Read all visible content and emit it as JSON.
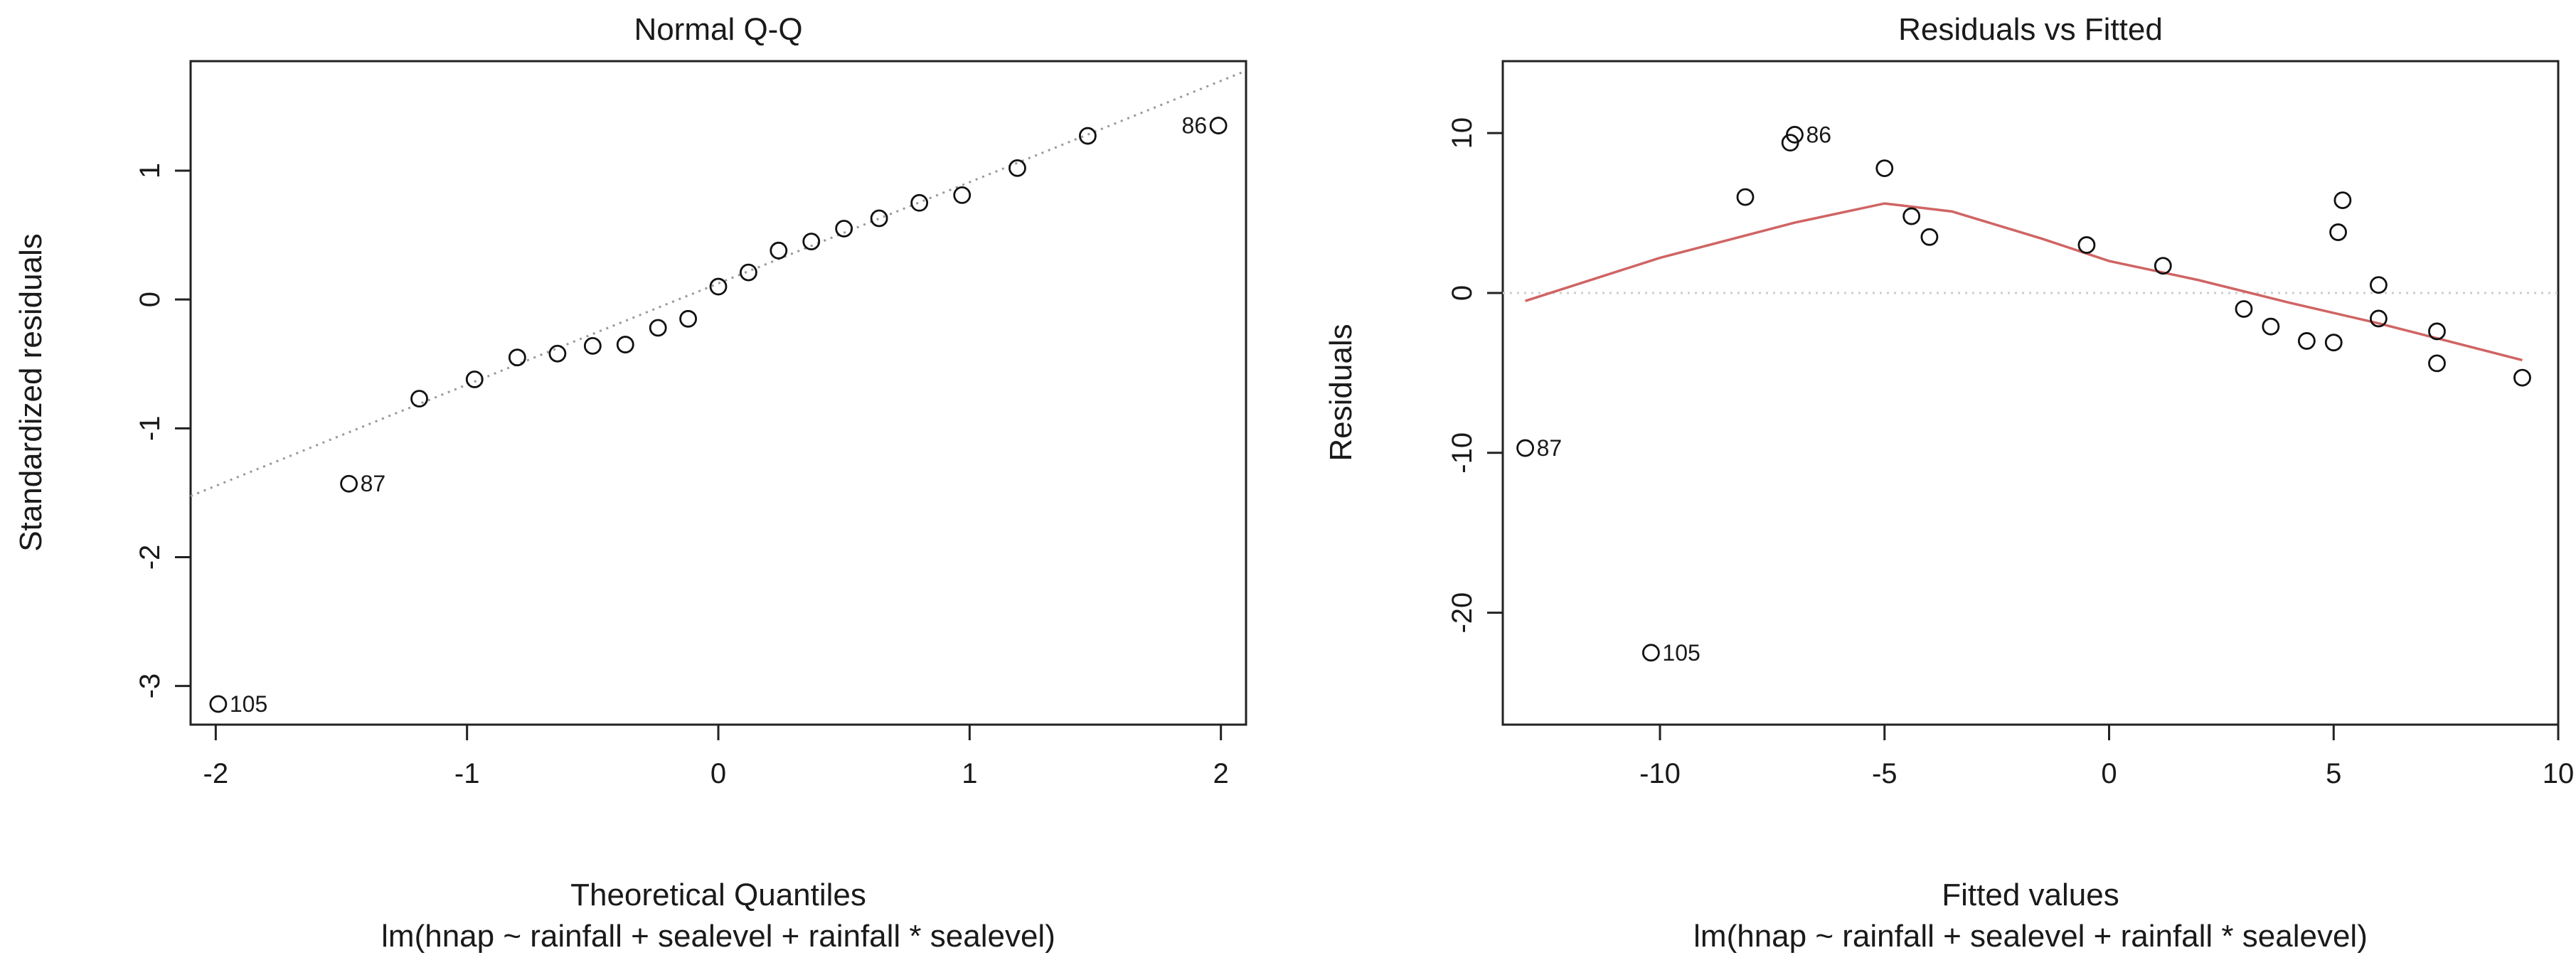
{
  "chart_data": [
    {
      "type": "scatter",
      "title": "Normal Q-Q",
      "xlabel": "Theoretical Quantiles",
      "subtitle": "lm(hnap ~ rainfall + sealevel + rainfall * sealevel)",
      "ylabel": "Standardized residuals",
      "xlim": [
        -2.1,
        2.1
      ],
      "ylim": [
        -3.3,
        1.85
      ],
      "xticks": [
        -2,
        -1,
        0,
        1,
        2
      ],
      "yticks": [
        -3,
        -2,
        -1,
        0,
        1
      ],
      "grid": false,
      "points": [
        {
          "x": -1.99,
          "y": -3.14,
          "label": "105"
        },
        {
          "x": -1.47,
          "y": -1.43,
          "label": "87"
        },
        {
          "x": -1.19,
          "y": -0.77
        },
        {
          "x": -0.97,
          "y": -0.62
        },
        {
          "x": -0.8,
          "y": -0.45
        },
        {
          "x": -0.64,
          "y": -0.42
        },
        {
          "x": -0.5,
          "y": -0.36
        },
        {
          "x": -0.37,
          "y": -0.35
        },
        {
          "x": -0.24,
          "y": -0.22
        },
        {
          "x": -0.12,
          "y": -0.15
        },
        {
          "x": 0.0,
          "y": 0.1
        },
        {
          "x": 0.12,
          "y": 0.21
        },
        {
          "x": 0.24,
          "y": 0.38
        },
        {
          "x": 0.37,
          "y": 0.45
        },
        {
          "x": 0.5,
          "y": 0.55
        },
        {
          "x": 0.64,
          "y": 0.63
        },
        {
          "x": 0.8,
          "y": 0.75
        },
        {
          "x": 0.97,
          "y": 0.81
        },
        {
          "x": 1.19,
          "y": 1.02
        },
        {
          "x": 1.47,
          "y": 1.27
        },
        {
          "x": 1.99,
          "y": 1.35,
          "label": "86"
        }
      ],
      "reference_line": {
        "slope": 0.786,
        "intercept": 0.125,
        "style": "dotted",
        "color": "#999999"
      }
    },
    {
      "type": "scatter",
      "title": "Residuals vs Fitted",
      "xlabel": "Fitted values",
      "subtitle": "lm(hnap ~ rainfall + sealevel + rainfall * sealevel)",
      "ylabel": "Residuals",
      "xlim": [
        -13.5,
        10.0
      ],
      "ylim": [
        -27,
        14.5
      ],
      "xticks": [
        -10,
        -5,
        0,
        5,
        10
      ],
      "yticks": [
        -20,
        -10,
        0,
        10
      ],
      "grid": false,
      "points": [
        {
          "x": -13.0,
          "y": -9.7,
          "label": "87"
        },
        {
          "x": -10.2,
          "y": -22.5,
          "label": "105"
        },
        {
          "x": -8.1,
          "y": 6.0
        },
        {
          "x": -7.1,
          "y": 9.4
        },
        {
          "x": -7.0,
          "y": 9.9,
          "label": "86"
        },
        {
          "x": -5.0,
          "y": 7.8
        },
        {
          "x": -4.4,
          "y": 4.8
        },
        {
          "x": -4.0,
          "y": 3.5
        },
        {
          "x": -0.5,
          "y": 3.0
        },
        {
          "x": 1.2,
          "y": 1.7
        },
        {
          "x": 3.0,
          "y": -1.0
        },
        {
          "x": 3.6,
          "y": -2.1
        },
        {
          "x": 4.4,
          "y": -3.0
        },
        {
          "x": 5.0,
          "y": -3.1
        },
        {
          "x": 5.1,
          "y": 3.8
        },
        {
          "x": 5.2,
          "y": 5.8
        },
        {
          "x": 6.0,
          "y": 0.5
        },
        {
          "x": 6.0,
          "y": -1.6
        },
        {
          "x": 7.3,
          "y": -2.4
        },
        {
          "x": 7.3,
          "y": -4.4
        },
        {
          "x": 9.2,
          "y": -5.3
        }
      ],
      "smooth_line": {
        "color": "#d06464",
        "x": [
          -13.0,
          -10.0,
          -7.0,
          -5.0,
          -3.5,
          -1.5,
          0.0,
          2.0,
          4.0,
          6.0,
          9.2
        ],
        "y": [
          -0.5,
          2.2,
          4.4,
          5.6,
          5.1,
          3.4,
          2.0,
          0.8,
          -0.6,
          -1.9,
          -4.2
        ]
      },
      "zero_line": {
        "y": 0,
        "style": "dotted",
        "color": "#cccccc"
      }
    }
  ]
}
